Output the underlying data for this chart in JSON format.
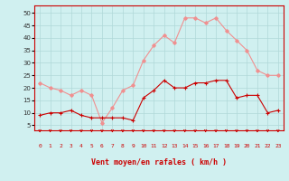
{
  "hours": [
    0,
    1,
    2,
    3,
    4,
    5,
    6,
    7,
    8,
    9,
    10,
    11,
    12,
    13,
    14,
    15,
    16,
    17,
    18,
    19,
    20,
    21,
    22,
    23
  ],
  "wind_avg": [
    9,
    10,
    10,
    11,
    9,
    8,
    8,
    8,
    8,
    7,
    16,
    19,
    23,
    20,
    20,
    22,
    22,
    23,
    23,
    16,
    17,
    17,
    10,
    11
  ],
  "wind_gust": [
    22,
    20,
    19,
    17,
    19,
    17,
    6,
    12,
    19,
    21,
    31,
    37,
    41,
    38,
    48,
    48,
    46,
    48,
    43,
    39,
    35,
    27,
    25,
    25
  ],
  "bg_color": "#d0f0f0",
  "grid_color": "#b0d8d8",
  "avg_color": "#cc0000",
  "gust_color": "#f09090",
  "xlabel": "Vent moyen/en rafales ( km/h )",
  "ylabel_ticks": [
    5,
    10,
    15,
    20,
    25,
    30,
    35,
    40,
    45,
    50
  ],
  "ylim": [
    3,
    53
  ],
  "xlim": [
    -0.5,
    23.5
  ]
}
